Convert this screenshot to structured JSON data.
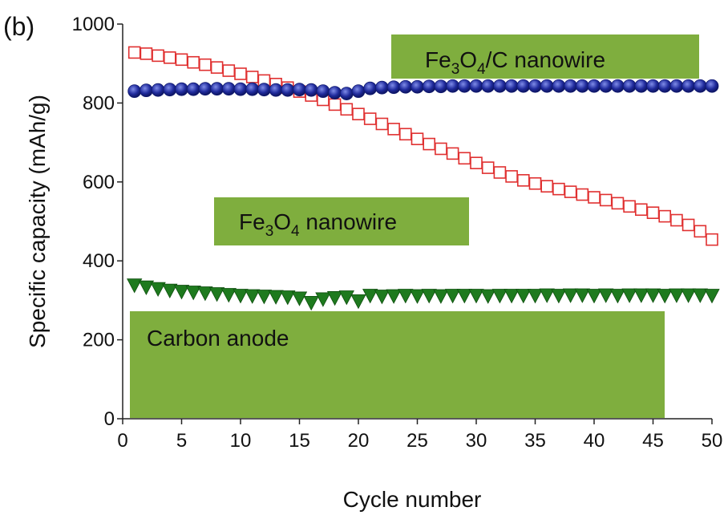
{
  "chart_data": {
    "type": "scatter",
    "panel_label": "(b)",
    "title": "",
    "xlabel": "Cycle number",
    "ylabel": "Specific capacity (mAh/g)",
    "xlim": [
      0,
      50
    ],
    "ylim": [
      0,
      1000
    ],
    "xticks": [
      0,
      5,
      10,
      15,
      20,
      25,
      30,
      35,
      40,
      45,
      50
    ],
    "yticks": [
      0,
      200,
      400,
      600,
      800,
      1000
    ],
    "grid": false,
    "colors": {
      "fe3o4": "#e03030",
      "fe3o4c": "#1f2a9c",
      "carbon": "#1e7a1e",
      "label_box": "#7fae3e"
    },
    "series": [
      {
        "key": "fe3o4",
        "marker": "open-square",
        "x": [
          1,
          2,
          3,
          4,
          5,
          6,
          7,
          8,
          9,
          10,
          11,
          12,
          13,
          14,
          15,
          16,
          17,
          18,
          19,
          20,
          21,
          22,
          23,
          24,
          25,
          26,
          27,
          28,
          29,
          30,
          31,
          32,
          33,
          34,
          35,
          36,
          37,
          38,
          39,
          40,
          41,
          42,
          43,
          44,
          45,
          46,
          47,
          48,
          49,
          50
        ],
        "values": [
          928,
          925,
          920,
          915,
          910,
          903,
          897,
          890,
          882,
          874,
          866,
          857,
          848,
          839,
          829,
          819,
          808,
          796,
          784,
          772,
          760,
          747,
          734,
          721,
          709,
          696,
          684,
          672,
          660,
          648,
          636,
          624,
          614,
          604,
          596,
          589,
          582,
          575,
          568,
          561,
          554,
          546,
          538,
          530,
          522,
          513,
          503,
          491,
          475,
          454
        ]
      },
      {
        "key": "fe3o4c",
        "marker": "filled-circle",
        "x": [
          1,
          2,
          3,
          4,
          5,
          6,
          7,
          8,
          9,
          10,
          11,
          12,
          13,
          14,
          15,
          16,
          17,
          18,
          19,
          20,
          21,
          22,
          23,
          24,
          25,
          26,
          27,
          28,
          29,
          30,
          31,
          32,
          33,
          34,
          35,
          36,
          37,
          38,
          39,
          40,
          41,
          42,
          43,
          44,
          45,
          46,
          47,
          48,
          49,
          50
        ],
        "values": [
          830,
          832,
          833,
          834,
          835,
          835,
          836,
          836,
          836,
          835,
          835,
          834,
          833,
          833,
          834,
          833,
          830,
          826,
          824,
          830,
          837,
          839,
          840,
          841,
          841,
          842,
          842,
          843,
          843,
          843,
          843,
          843,
          843,
          843,
          843,
          843,
          843,
          843,
          843,
          843,
          843,
          843,
          843,
          843,
          843,
          843,
          843,
          843,
          843,
          843
        ]
      },
      {
        "key": "carbon",
        "marker": "filled-triangle-down",
        "x": [
          1,
          2,
          3,
          4,
          5,
          6,
          7,
          8,
          9,
          10,
          11,
          12,
          13,
          14,
          15,
          16,
          17,
          18,
          19,
          20,
          21,
          22,
          23,
          24,
          25,
          26,
          27,
          28,
          29,
          30,
          31,
          32,
          33,
          34,
          35,
          36,
          37,
          38,
          39,
          40,
          41,
          42,
          43,
          44,
          45,
          46,
          47,
          48,
          49,
          50
        ],
        "values": [
          338,
          333,
          329,
          325,
          322,
          320,
          318,
          316,
          314,
          312,
          311,
          310,
          309,
          308,
          305,
          294,
          303,
          306,
          308,
          298,
          312,
          310,
          311,
          312,
          311,
          312,
          311,
          312,
          312,
          312,
          311,
          312,
          312,
          312,
          312,
          313,
          312,
          313,
          313,
          312,
          313,
          312,
          313,
          313,
          313,
          312,
          313,
          313,
          313,
          312
        ]
      }
    ],
    "annotations": {
      "fe3o4c": {
        "prefix": "Fe",
        "sub1": "3",
        "mid": "O",
        "sub2": "4",
        "suffix": "/C nanowire"
      },
      "fe3o4": {
        "prefix": "Fe",
        "sub1": "3",
        "mid": "O",
        "sub2": "4",
        "suffix": " nanowire"
      },
      "carbon": {
        "text": "Carbon anode"
      }
    }
  }
}
